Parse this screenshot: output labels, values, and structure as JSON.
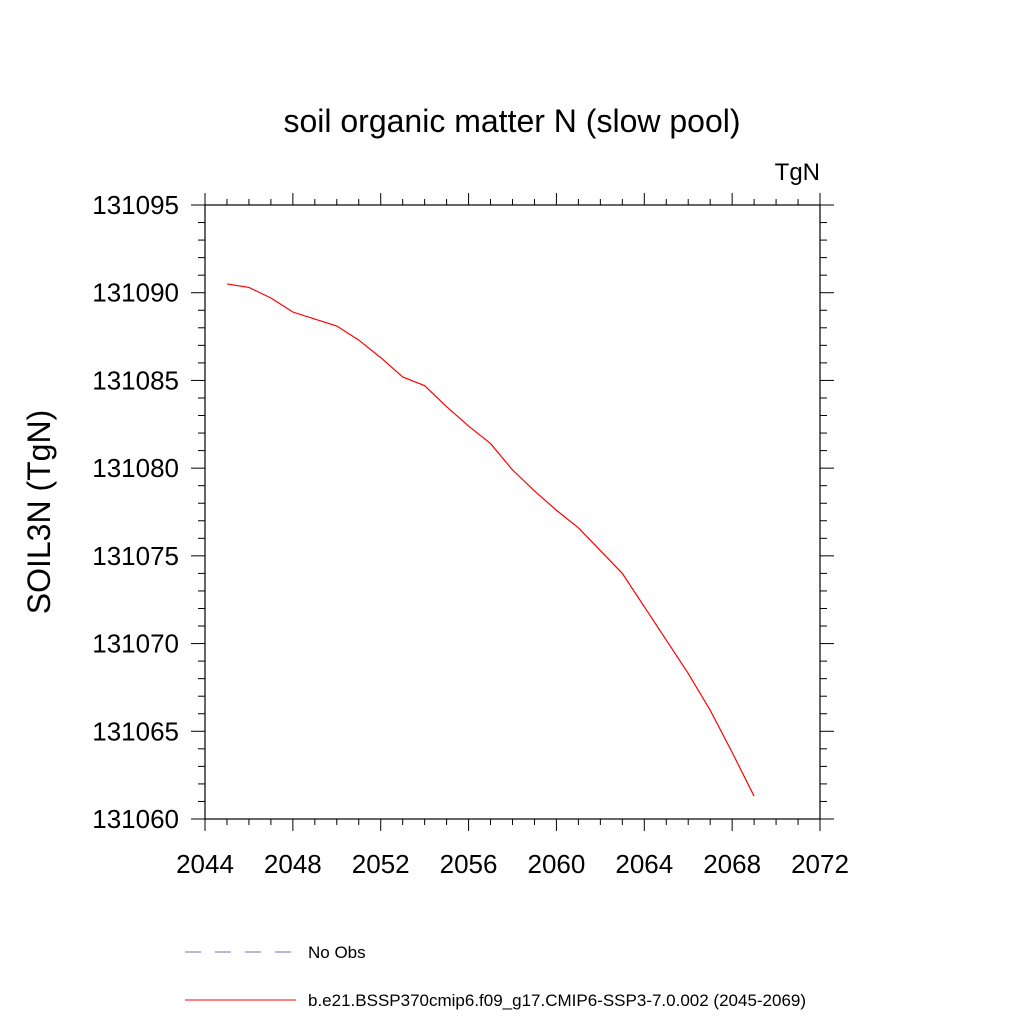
{
  "chart_data": {
    "type": "line",
    "title": "soil organic matter N (slow pool)",
    "units_label": "TgN",
    "ylabel": "SOIL3N  (TgN)",
    "xlabel": "",
    "xlim": [
      2044,
      2072
    ],
    "ylim": [
      131060,
      131095
    ],
    "x_ticks": [
      2044,
      2048,
      2052,
      2056,
      2060,
      2064,
      2068,
      2072
    ],
    "y_ticks": [
      131060,
      131065,
      131070,
      131075,
      131080,
      131085,
      131090,
      131095
    ],
    "x_tick_labels": [
      "2044",
      "2048",
      "2052",
      "2056",
      "2060",
      "2064",
      "2068",
      "2072"
    ],
    "y_tick_labels": [
      "131060",
      "131065",
      "131070",
      "131075",
      "131080",
      "131085",
      "131090",
      "131095"
    ],
    "grid": false,
    "series": [
      {
        "name": "b.e21.BSSP370cmip6.f09_g17.CMIP6-SSP3-7.0.002 (2045-2069)",
        "color": "#ff0000",
        "dash": "solid",
        "x": [
          2045,
          2046,
          2047,
          2048,
          2049,
          2050,
          2051,
          2052,
          2053,
          2054,
          2055,
          2056,
          2057,
          2058,
          2059,
          2060,
          2061,
          2062,
          2063,
          2064,
          2065,
          2066,
          2067,
          2068,
          2069
        ],
        "y": [
          131090.5,
          131090.3,
          131089.7,
          131088.9,
          131088.5,
          131088.1,
          131087.3,
          131086.3,
          131085.2,
          131084.7,
          131083.5,
          131082.4,
          131081.4,
          131079.9,
          131078.7,
          131077.6,
          131076.6,
          131075.3,
          131074.0,
          131072.1,
          131070.2,
          131068.3,
          131066.2,
          131063.8,
          131061.3
        ]
      }
    ],
    "legend": {
      "placement": "bottom-left",
      "entries": [
        {
          "label": "No Obs",
          "color": "#6f6fbf",
          "dash": "dashed"
        },
        {
          "label": "b.e21.BSSP370cmip6.f09_g17.CMIP6-SSP3-7.0.002 (2045-2069)",
          "color": "#ff0000",
          "dash": "solid"
        }
      ]
    }
  }
}
